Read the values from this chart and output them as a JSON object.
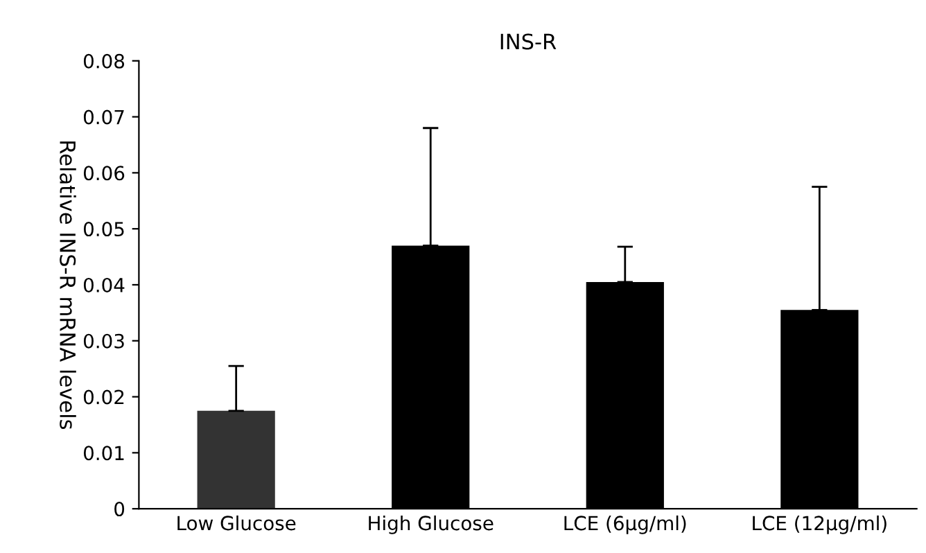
{
  "chart_data": {
    "type": "bar",
    "title": "INS-R",
    "ylabel": "Relative INS-R mRNA levels",
    "categories": [
      "Low Glucose",
      "High Glucose",
      "LCE (6μg/ml)",
      "LCE (12μg/ml)"
    ],
    "values": [
      0.0175,
      0.047,
      0.0405,
      0.0355
    ],
    "colors": [
      "#333333",
      "#000000",
      "#000000",
      "#000000"
    ],
    "errors": [
      [
        0.0175,
        0.0255
      ],
      [
        0.047,
        0.068
      ],
      [
        0.0405,
        0.0468
      ],
      [
        0.0355,
        0.0575
      ]
    ],
    "ylim": [
      0,
      0.08
    ],
    "yticks": [
      0,
      0.01,
      0.02,
      0.03,
      0.04,
      0.05,
      0.06,
      0.07,
      0.08
    ],
    "grid": false
  }
}
